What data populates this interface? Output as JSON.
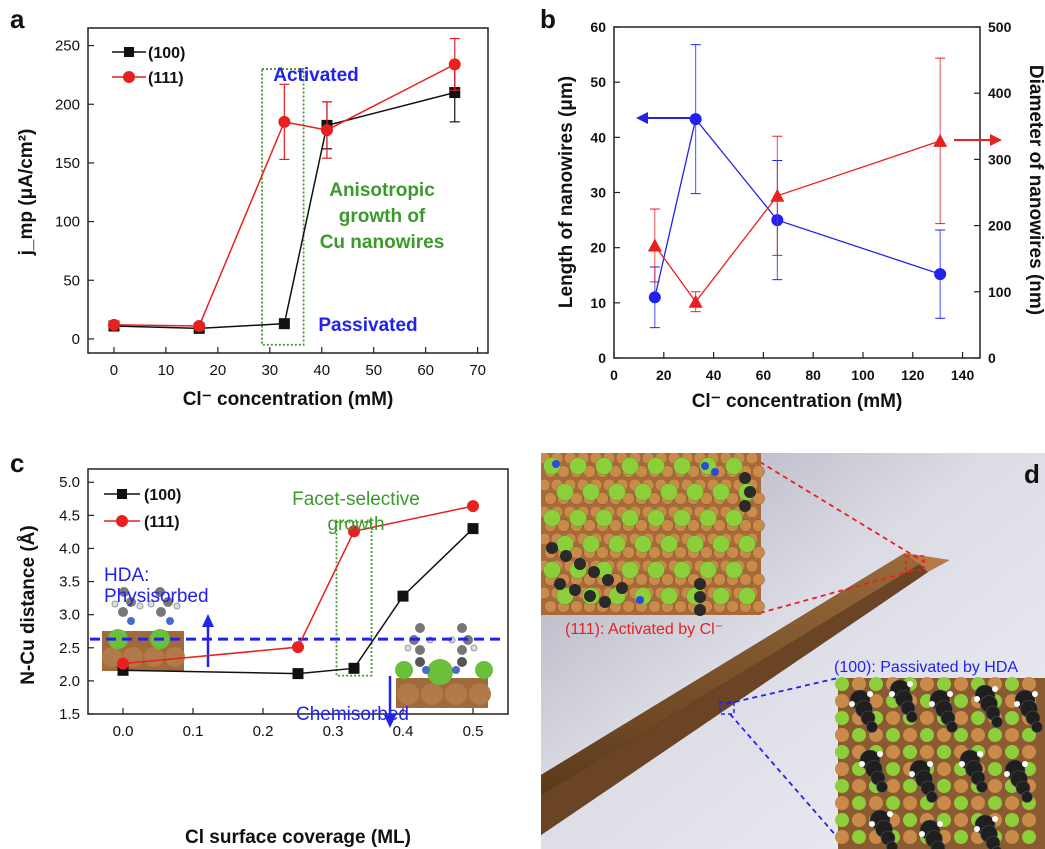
{
  "panel_labels": {
    "a": "a",
    "b": "b",
    "c": "c",
    "d": "d"
  },
  "colors": {
    "red": "#e8201f",
    "black": "#111111",
    "blue": "#2222ee",
    "green": "#2a8a2a",
    "green_text": "#3a9a2a"
  },
  "chart_data": [
    {
      "panel": "a",
      "type": "line",
      "xlabel": "Cl⁻ concentration (mM)",
      "ylabel": "j_mp (μA/cm²)",
      "xlim": [
        -5,
        72
      ],
      "ylim": [
        -12,
        265
      ],
      "xticks": [
        0,
        10,
        20,
        30,
        40,
        50,
        60,
        70
      ],
      "yticks": [
        0,
        50,
        100,
        150,
        200,
        250
      ],
      "legend_position": "top-left",
      "series": [
        {
          "name": "(100)",
          "color": "#111111",
          "marker": "square",
          "points": [
            [
              0,
              11
            ],
            [
              16.4,
              9
            ],
            [
              32.8,
              13
            ],
            [
              41,
              182
            ],
            [
              65.6,
              210
            ]
          ],
          "errors": [
            0,
            0,
            0,
            20,
            25
          ]
        },
        {
          "name": "(111)",
          "color": "#e8201f",
          "marker": "circle",
          "points": [
            [
              0,
              12
            ],
            [
              16.4,
              11
            ],
            [
              32.8,
              185
            ],
            [
              41,
              178
            ],
            [
              65.6,
              234
            ]
          ],
          "errors": [
            0,
            0,
            32,
            24,
            22
          ]
        }
      ],
      "annotations": {
        "activated": "Activated",
        "anisotropic": [
          "Anisotropic",
          "growth of",
          "Cu nanowires"
        ],
        "passivated": "Passivated"
      },
      "highlight_x": [
        28.5,
        36.5
      ],
      "highlight_y": [
        -5,
        230
      ]
    },
    {
      "panel": "b",
      "type": "line",
      "xlabel": "Cl⁻ concentration (mM)",
      "ylabel": "Length of nanowires (μm)",
      "y2label": "Diameter of nanowires (nm)",
      "xlim": [
        0,
        147
      ],
      "ylim": [
        0,
        60
      ],
      "y2lim": [
        0,
        500
      ],
      "xticks": [
        0,
        20,
        40,
        60,
        80,
        100,
        120,
        140
      ],
      "yticks": [
        0,
        10,
        20,
        30,
        40,
        50,
        60
      ],
      "y2ticks": [
        0,
        100,
        200,
        300,
        400,
        500
      ],
      "series": [
        {
          "axis": "left",
          "color": "#2222ee",
          "marker": "circle",
          "points": [
            [
              16.4,
              11
            ],
            [
              32.8,
              43.3
            ],
            [
              65.6,
              25
            ],
            [
              131,
              15.2
            ]
          ],
          "errors": [
            5.5,
            13.5,
            10.8,
            8
          ]
        },
        {
          "axis": "right",
          "color": "#e8201f",
          "marker": "triangle",
          "points": [
            [
              16.4,
              170
            ],
            [
              32.8,
              85
            ],
            [
              65.6,
              245
            ],
            [
              131,
              328
            ]
          ],
          "errors": [
            55,
            15,
            90,
            125
          ]
        }
      ]
    },
    {
      "panel": "c",
      "type": "line",
      "xlabel": "Cl surface coverage (ML)",
      "ylabel": "N-Cu distance (Å)",
      "xlim": [
        -0.05,
        0.55
      ],
      "ylim": [
        1.5,
        5.2
      ],
      "xticks": [
        0.0,
        0.1,
        0.2,
        0.3,
        0.4,
        0.5
      ],
      "yticks": [
        1.5,
        2.0,
        2.5,
        3.0,
        3.5,
        4.0,
        4.5,
        5.0
      ],
      "legend_position": "top-left",
      "series": [
        {
          "name": "(100)",
          "color": "#111111",
          "marker": "square",
          "points": [
            [
              0,
              2.16
            ],
            [
              0.25,
              2.11
            ],
            [
              0.33,
              2.19
            ],
            [
              0.4,
              3.28
            ],
            [
              0.5,
              4.3
            ]
          ]
        },
        {
          "name": "(111)",
          "color": "#e8201f",
          "marker": "circle",
          "points": [
            [
              0,
              2.26
            ],
            [
              0.25,
              2.51
            ],
            [
              0.33,
              4.26
            ],
            [
              0.5,
              4.64
            ]
          ]
        }
      ],
      "threshold_y": 2.63,
      "highlight_x": [
        0.305,
        0.355
      ],
      "highlight_y": [
        2.08,
        4.4
      ],
      "annotations": {
        "facet": [
          "Facet-selective",
          "growth"
        ],
        "hda": [
          "HDA:",
          "Physisorbed"
        ],
        "chemisorbed": "Chemisorbed"
      }
    }
  ],
  "panel_d": {
    "label_111": "(111): Activated by Cl⁻",
    "label_100": "(100): Passivated by HDA"
  }
}
